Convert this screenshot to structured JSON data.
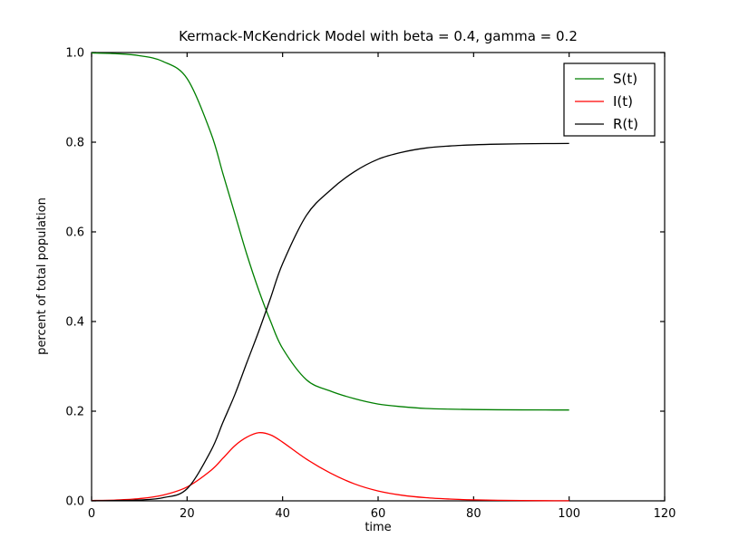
{
  "colors": {
    "background": "#ffffff",
    "frame": "#000000",
    "text": "#000000",
    "series_s": "#007f00",
    "series_i": "#ff0000",
    "series_r": "#000000"
  },
  "chart_data": {
    "type": "line",
    "title": "Kermack-McKendrick Model with beta = 0.4, gamma = 0.2",
    "xlabel": "time",
    "ylabel": "percent of total population",
    "xlim": [
      0,
      120
    ],
    "ylim": [
      0.0,
      1.0
    ],
    "x_ticks": [
      0,
      20,
      40,
      60,
      80,
      100,
      120
    ],
    "x_tick_labels": [
      "0",
      "20",
      "40",
      "60",
      "80",
      "100",
      "120"
    ],
    "y_ticks": [
      0.0,
      0.2,
      0.4,
      0.6,
      0.8,
      1.0
    ],
    "y_tick_labels": [
      "0.0",
      "0.2",
      "0.4",
      "0.6",
      "0.8",
      "1.0"
    ],
    "grid": false,
    "legend": {
      "position": "upper right",
      "entries": [
        "S(t)",
        "I(t)",
        "R(t)"
      ]
    },
    "x": [
      0,
      5,
      10,
      15,
      20,
      25,
      27.5,
      30,
      32.5,
      35,
      37.5,
      40,
      45,
      50,
      55,
      60,
      65,
      70,
      75,
      80,
      85,
      90,
      95,
      100
    ],
    "series": [
      {
        "name": "S(t)",
        "color": "#007f00",
        "values": [
          0.999,
          0.9975,
          0.993,
          0.98,
          0.942,
          0.82,
          0.73,
          0.64,
          0.55,
          0.47,
          0.4,
          0.34,
          0.27,
          0.245,
          0.228,
          0.216,
          0.21,
          0.206,
          0.2045,
          0.2037,
          0.2032,
          0.2029,
          0.2027,
          0.2026
        ]
      },
      {
        "name": "I(t)",
        "color": "#ff0000",
        "values": [
          0.0008,
          0.0018,
          0.005,
          0.013,
          0.031,
          0.068,
          0.095,
          0.123,
          0.142,
          0.152,
          0.147,
          0.131,
          0.093,
          0.062,
          0.038,
          0.022,
          0.0125,
          0.007,
          0.004,
          0.0022,
          0.0012,
          0.0007,
          0.0004,
          0.0002
        ]
      },
      {
        "name": "R(t)",
        "color": "#000000",
        "values": [
          0.0002,
          0.0007,
          0.002,
          0.007,
          0.027,
          0.112,
          0.175,
          0.237,
          0.308,
          0.378,
          0.453,
          0.529,
          0.637,
          0.693,
          0.734,
          0.762,
          0.7775,
          0.787,
          0.7915,
          0.7941,
          0.7956,
          0.7964,
          0.7969,
          0.7972
        ]
      }
    ]
  }
}
